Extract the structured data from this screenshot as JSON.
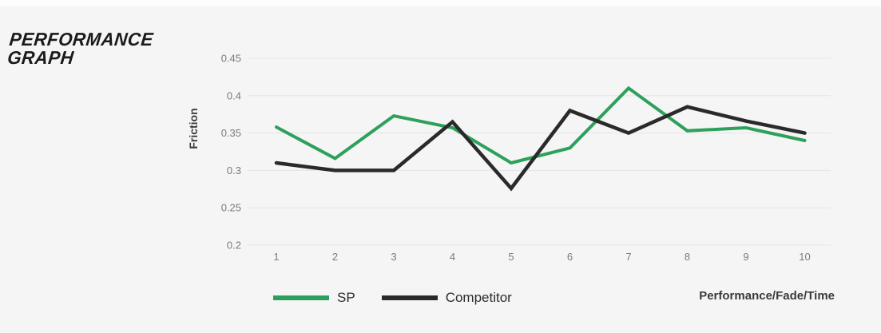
{
  "page": {
    "background_color": "#f5f5f5"
  },
  "title": {
    "line1": "PERFORMANCE",
    "line2": "GRAPH"
  },
  "chart_data": {
    "type": "line",
    "title": "Performance Graph",
    "xlabel": "",
    "ylabel": "Friction",
    "x": [
      1,
      2,
      3,
      4,
      5,
      6,
      7,
      8,
      9,
      10
    ],
    "series": [
      {
        "name": "SP",
        "color": "#2da15b",
        "stroke_width": 4,
        "values": [
          0.358,
          0.316,
          0.373,
          0.357,
          0.31,
          0.33,
          0.41,
          0.353,
          0.357,
          0.34
        ]
      },
      {
        "name": "Competitor",
        "color": "#2a2a2a",
        "stroke_width": 4.5,
        "values": [
          0.31,
          0.3,
          0.3,
          0.365,
          0.276,
          0.38,
          0.35,
          0.385,
          0.366,
          0.35
        ]
      }
    ],
    "yticks": [
      0.45,
      0.4,
      0.35,
      0.3,
      0.25,
      0.2
    ],
    "ylim": [
      0.2,
      0.45
    ],
    "grid": "horizontal",
    "gridline_color": "#e5e5e5",
    "legend_position": "bottom",
    "footnote": "Performance/Fade/Time"
  }
}
